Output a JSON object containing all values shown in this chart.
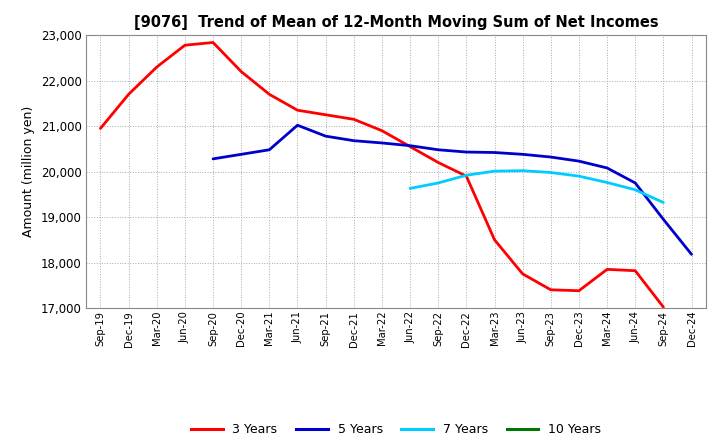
{
  "title": "[9076]  Trend of Mean of 12-Month Moving Sum of Net Incomes",
  "ylabel": "Amount (million yen)",
  "background_color": "#ffffff",
  "grid_color": "#aaaaaa",
  "ylim": [
    17000,
    23000
  ],
  "yticks": [
    17000,
    18000,
    19000,
    20000,
    21000,
    22000,
    23000
  ],
  "x_labels": [
    "Sep-19",
    "Dec-19",
    "Mar-20",
    "Jun-20",
    "Sep-20",
    "Dec-20",
    "Mar-21",
    "Jun-21",
    "Sep-21",
    "Dec-21",
    "Mar-22",
    "Jun-22",
    "Sep-22",
    "Dec-22",
    "Mar-23",
    "Jun-23",
    "Sep-23",
    "Dec-23",
    "Mar-24",
    "Jun-24",
    "Sep-24",
    "Dec-24"
  ],
  "series": {
    "3 Years": {
      "color": "#ff0000",
      "linewidth": 2.0,
      "values": [
        20950,
        21700,
        22300,
        22780,
        22840,
        22200,
        21700,
        21350,
        21250,
        21150,
        20900,
        20550,
        20200,
        19900,
        18500,
        17750,
        17400,
        17380,
        17850,
        17820,
        17020,
        null
      ]
    },
    "5 Years": {
      "color": "#0000cc",
      "linewidth": 2.0,
      "values": [
        null,
        null,
        null,
        null,
        20280,
        20380,
        20480,
        21020,
        20780,
        20680,
        20630,
        20570,
        20480,
        20430,
        20420,
        20380,
        20320,
        20230,
        20080,
        19750,
        18950,
        18180
      ]
    },
    "7 Years": {
      "color": "#00ccff",
      "linewidth": 2.0,
      "values": [
        null,
        null,
        null,
        null,
        null,
        null,
        null,
        null,
        null,
        null,
        null,
        19630,
        19750,
        19920,
        20010,
        20020,
        19980,
        19900,
        19760,
        19600,
        19320,
        null
      ]
    },
    "10 Years": {
      "color": "#007700",
      "linewidth": 2.0,
      "values": [
        null,
        null,
        null,
        null,
        null,
        null,
        null,
        null,
        null,
        null,
        null,
        null,
        null,
        null,
        null,
        null,
        null,
        null,
        null,
        null,
        null,
        null
      ]
    }
  },
  "legend_labels": [
    "3 Years",
    "5 Years",
    "7 Years",
    "10 Years"
  ],
  "legend_colors": [
    "#ff0000",
    "#0000cc",
    "#00ccff",
    "#007700"
  ]
}
